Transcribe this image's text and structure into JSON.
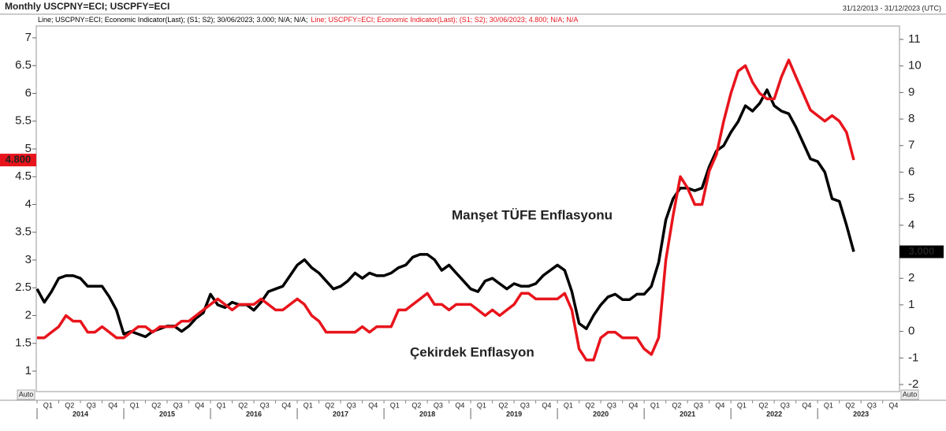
{
  "chart_data": {
    "type": "line",
    "title": "Monthly USCPNY=ECI; USCPFY=ECI",
    "date_range": "31/12/2013 - 31/12/2023 (UTC)",
    "x": [
      "2014-01",
      "2014-02",
      "2014-03",
      "2014-04",
      "2014-05",
      "2014-06",
      "2014-07",
      "2014-08",
      "2014-09",
      "2014-10",
      "2014-11",
      "2014-12",
      "2015-01",
      "2015-02",
      "2015-03",
      "2015-04",
      "2015-05",
      "2015-06",
      "2015-07",
      "2015-08",
      "2015-09",
      "2015-10",
      "2015-11",
      "2015-12",
      "2016-01",
      "2016-02",
      "2016-03",
      "2016-04",
      "2016-05",
      "2016-06",
      "2016-07",
      "2016-08",
      "2016-09",
      "2016-10",
      "2016-11",
      "2016-12",
      "2017-01",
      "2017-02",
      "2017-03",
      "2017-04",
      "2017-05",
      "2017-06",
      "2017-07",
      "2017-08",
      "2017-09",
      "2017-10",
      "2017-11",
      "2017-12",
      "2018-01",
      "2018-02",
      "2018-03",
      "2018-04",
      "2018-05",
      "2018-06",
      "2018-07",
      "2018-08",
      "2018-09",
      "2018-10",
      "2018-11",
      "2018-12",
      "2019-01",
      "2019-02",
      "2019-03",
      "2019-04",
      "2019-05",
      "2019-06",
      "2019-07",
      "2019-08",
      "2019-09",
      "2019-10",
      "2019-11",
      "2019-12",
      "2020-01",
      "2020-02",
      "2020-03",
      "2020-04",
      "2020-05",
      "2020-06",
      "2020-07",
      "2020-08",
      "2020-09",
      "2020-10",
      "2020-11",
      "2020-12",
      "2021-01",
      "2021-02",
      "2021-03",
      "2021-04",
      "2021-05",
      "2021-06",
      "2021-07",
      "2021-08",
      "2021-09",
      "2021-10",
      "2021-11",
      "2021-12",
      "2022-01",
      "2022-02",
      "2022-03",
      "2022-04",
      "2022-05",
      "2022-06",
      "2022-07",
      "2022-08",
      "2022-09",
      "2022-10",
      "2022-11",
      "2022-12",
      "2023-01",
      "2023-02",
      "2023-03",
      "2023-04",
      "2023-05",
      "2023-06"
    ],
    "xlim": [
      "2014-01",
      "2023-12"
    ],
    "xticks": [
      {
        "value": "2014-01",
        "label": "Q1"
      },
      {
        "value": "2014-04",
        "label": "Q2"
      },
      {
        "value": "2014-07",
        "label": "Q3"
      },
      {
        "value": "2014-10",
        "label": "Q4"
      },
      {
        "value": "2015-01",
        "label": "Q1"
      },
      {
        "value": "2015-04",
        "label": "Q2"
      },
      {
        "value": "2015-07",
        "label": "Q3"
      },
      {
        "value": "2015-10",
        "label": "Q4"
      },
      {
        "value": "2016-01",
        "label": "Q1"
      },
      {
        "value": "2016-04",
        "label": "Q2"
      },
      {
        "value": "2016-07",
        "label": "Q3"
      },
      {
        "value": "2016-10",
        "label": "Q4"
      },
      {
        "value": "2017-01",
        "label": "Q1"
      },
      {
        "value": "2017-04",
        "label": "Q2"
      },
      {
        "value": "2017-07",
        "label": "Q3"
      },
      {
        "value": "2017-10",
        "label": "Q4"
      },
      {
        "value": "2018-01",
        "label": "Q1"
      },
      {
        "value": "2018-04",
        "label": "Q2"
      },
      {
        "value": "2018-07",
        "label": "Q3"
      },
      {
        "value": "2018-10",
        "label": "Q4"
      },
      {
        "value": "2019-01",
        "label": "Q1"
      },
      {
        "value": "2019-04",
        "label": "Q2"
      },
      {
        "value": "2019-07",
        "label": "Q3"
      },
      {
        "value": "2019-10",
        "label": "Q4"
      },
      {
        "value": "2020-01",
        "label": "Q1"
      },
      {
        "value": "2020-04",
        "label": "Q2"
      },
      {
        "value": "2020-07",
        "label": "Q3"
      },
      {
        "value": "2020-10",
        "label": "Q4"
      },
      {
        "value": "2021-01",
        "label": "Q1"
      },
      {
        "value": "2021-04",
        "label": "Q2"
      },
      {
        "value": "2021-07",
        "label": "Q3"
      },
      {
        "value": "2021-10",
        "label": "Q4"
      },
      {
        "value": "2022-01",
        "label": "Q1"
      },
      {
        "value": "2022-04",
        "label": "Q2"
      },
      {
        "value": "2022-07",
        "label": "Q3"
      },
      {
        "value": "2022-10",
        "label": "Q4"
      },
      {
        "value": "2023-01",
        "label": "Q1"
      },
      {
        "value": "2023-04",
        "label": "Q2"
      },
      {
        "value": "2023-07",
        "label": "Q3"
      },
      {
        "value": "2023-10",
        "label": "Q4"
      }
    ],
    "year_ticks": [
      "2014",
      "2015",
      "2016",
      "2017",
      "2018",
      "2019",
      "2020",
      "2021",
      "2022",
      "2023"
    ],
    "ylim": [
      1,
      7
    ],
    "yticks": [
      1,
      1.5,
      2,
      2.5,
      3,
      3.5,
      4,
      4.5,
      5,
      5.5,
      6,
      6.5,
      7
    ],
    "y2lim": [
      -2,
      11
    ],
    "y2ticks": [
      -2,
      -1,
      0,
      1,
      2,
      3,
      4,
      5,
      6,
      7,
      8,
      9,
      10,
      11
    ],
    "axis_mode_label": "Auto",
    "grid": false,
    "series": [
      {
        "name": "Line; USCPNY=ECI; Economic Indicator(Last); (S1; S2); 30/06/2023; 3.000; N/A; N/A;",
        "color": "#000000",
        "axis": "y2",
        "end_label": "3.000",
        "values": [
          1.6,
          1.1,
          1.5,
          2.0,
          2.1,
          2.1,
          2.0,
          1.7,
          1.7,
          1.7,
          1.3,
          0.8,
          -0.1,
          0.0,
          -0.1,
          -0.2,
          0.0,
          0.1,
          0.2,
          0.2,
          0.0,
          0.2,
          0.5,
          0.7,
          1.4,
          1.0,
          0.9,
          1.1,
          1.0,
          1.0,
          0.8,
          1.1,
          1.5,
          1.6,
          1.7,
          2.1,
          2.5,
          2.7,
          2.4,
          2.2,
          1.9,
          1.6,
          1.7,
          1.9,
          2.2,
          2.0,
          2.2,
          2.1,
          2.1,
          2.2,
          2.4,
          2.5,
          2.8,
          2.9,
          2.9,
          2.7,
          2.3,
          2.5,
          2.2,
          1.9,
          1.6,
          1.5,
          1.9,
          2.0,
          1.8,
          1.6,
          1.8,
          1.7,
          1.7,
          1.8,
          2.1,
          2.3,
          2.5,
          2.3,
          1.5,
          0.3,
          0.1,
          0.6,
          1.0,
          1.3,
          1.4,
          1.2,
          1.2,
          1.4,
          1.4,
          1.7,
          2.6,
          4.2,
          5.0,
          5.4,
          5.4,
          5.3,
          5.4,
          6.2,
          6.8,
          7.0,
          7.5,
          7.9,
          8.5,
          8.3,
          8.6,
          9.1,
          8.5,
          8.3,
          8.2,
          7.7,
          7.1,
          6.5,
          6.4,
          6.0,
          5.0,
          4.9,
          4.0,
          3.0
        ]
      },
      {
        "name": "Line; USCPFY=ECI; Economic Indicator(Last); (S1; S2); 30/06/2023; 4.800; N/A; N/A",
        "color": "#e8141c",
        "axis": "y",
        "end_label": "4.800",
        "values": [
          1.6,
          1.6,
          1.7,
          1.8,
          2.0,
          1.9,
          1.9,
          1.7,
          1.7,
          1.8,
          1.7,
          1.6,
          1.6,
          1.7,
          1.8,
          1.8,
          1.7,
          1.8,
          1.8,
          1.8,
          1.9,
          1.9,
          2.0,
          2.1,
          2.2,
          2.3,
          2.2,
          2.1,
          2.2,
          2.2,
          2.2,
          2.3,
          2.2,
          2.1,
          2.1,
          2.2,
          2.3,
          2.2,
          2.0,
          1.9,
          1.7,
          1.7,
          1.7,
          1.7,
          1.7,
          1.8,
          1.7,
          1.8,
          1.8,
          1.8,
          2.1,
          2.1,
          2.2,
          2.3,
          2.4,
          2.2,
          2.2,
          2.1,
          2.2,
          2.2,
          2.2,
          2.1,
          2.0,
          2.1,
          2.0,
          2.1,
          2.2,
          2.4,
          2.4,
          2.3,
          2.3,
          2.3,
          2.3,
          2.4,
          2.1,
          1.4,
          1.2,
          1.2,
          1.6,
          1.7,
          1.7,
          1.6,
          1.6,
          1.6,
          1.4,
          1.3,
          1.6,
          3.0,
          3.8,
          4.5,
          4.3,
          4.0,
          4.0,
          4.6,
          4.9,
          5.5,
          6.0,
          6.4,
          6.5,
          6.2,
          6.0,
          5.9,
          5.9,
          6.3,
          6.6,
          6.3,
          6.0,
          5.7,
          5.6,
          5.5,
          5.6,
          5.5,
          5.3,
          4.8
        ]
      }
    ],
    "annotations": [
      {
        "text": "Manşet TÜFE Enflasyonu",
        "series": 0
      },
      {
        "text": "Çekirdek Enflasyon",
        "series": 1
      }
    ]
  }
}
